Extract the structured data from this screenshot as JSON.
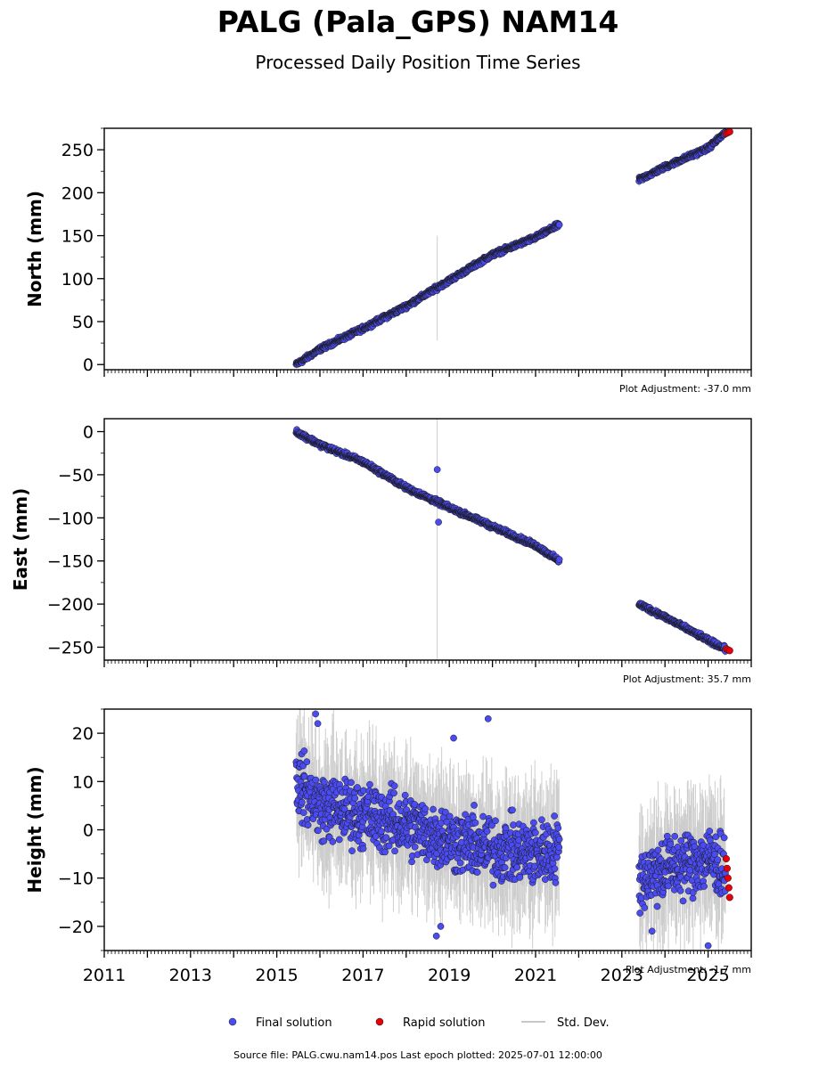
{
  "figure": {
    "title": "PALG (Pala_GPS) NAM14",
    "subtitle": "Processed Daily Position Time Series",
    "source_note": "Source file: PALG.cwu.nam14.pos  Last epoch plotted: 2025-07-01 12:00:00"
  },
  "legend": {
    "final": "Final solution",
    "rapid": "Rapid solution",
    "stddev": "Std. Dev."
  },
  "colors": {
    "final": "#4b4bf2",
    "rapid": "#e8000b",
    "stddev": "#b8b8b8",
    "edge": "#1a1a1a"
  },
  "chart_data": [
    {
      "type": "scatter",
      "ylabel": "North (mm)",
      "adjustment": "Plot Adjustment: -37.0 mm",
      "xlim": [
        2011.0,
        2026.0
      ],
      "ylim": [
        -6,
        275
      ],
      "yticks": [
        0,
        50,
        100,
        150,
        200,
        250
      ],
      "ytick_labels": [
        "0",
        "50",
        "100",
        "150",
        "200",
        "250"
      ],
      "series": [
        {
          "name": "Final solution",
          "segments": [
            {
              "x": [
                2015.45,
                2016.0,
                2017.0,
                2018.0,
                2019.0,
                2020.0,
                2021.0,
                2021.55
              ],
              "y": [
                0,
                18,
                42,
                68,
                98,
                128,
                148,
                163
              ]
            },
            {
              "x": [
                2023.4,
                2024.0,
                2025.0,
                2025.4
              ],
              "y": [
                215,
                230,
                252,
                270
              ]
            }
          ],
          "noise": 2
        },
        {
          "name": "Rapid solution",
          "x": [
            2025.42,
            2025.46,
            2025.5
          ],
          "y": [
            269,
            270,
            271
          ]
        }
      ],
      "outliers": [],
      "stddev_spikes": [
        {
          "x": 2018.72,
          "y_low": 28,
          "y_high": 150
        }
      ]
    },
    {
      "type": "scatter",
      "ylabel": "East (mm)",
      "adjustment": "Plot Adjustment: 35.7 mm",
      "xlim": [
        2011.0,
        2026.0
      ],
      "ylim": [
        -265,
        15
      ],
      "yticks": [
        0,
        -50,
        -100,
        -150,
        -200,
        -250
      ],
      "ytick_labels": [
        "0",
        "−50",
        "−100",
        "−150",
        "−200",
        "−250"
      ],
      "series": [
        {
          "name": "Final solution",
          "segments": [
            {
              "x": [
                2015.45,
                2016.0,
                2017.0,
                2018.0,
                2019.0,
                2020.0,
                2021.0,
                2021.55
              ],
              "y": [
                0,
                -15,
                -35,
                -65,
                -88,
                -110,
                -132,
                -150
              ]
            },
            {
              "x": [
                2023.4,
                2024.0,
                2025.0,
                2025.4
              ],
              "y": [
                -200,
                -215,
                -242,
                -252
              ]
            }
          ],
          "noise": 2
        },
        {
          "name": "Rapid solution",
          "x": [
            2025.42,
            2025.46,
            2025.5
          ],
          "y": [
            -252,
            -253,
            -254
          ]
        }
      ],
      "outliers": [
        {
          "x": 2018.72,
          "y": -44
        },
        {
          "x": 2018.75,
          "y": -105
        }
      ],
      "stddev_spikes": [
        {
          "x": 2018.72,
          "y_low": -265,
          "y_high": 15
        }
      ]
    },
    {
      "type": "scatter",
      "ylabel": "Height (mm)",
      "adjustment": "Plot Adjustment: -1.7 mm",
      "xlim": [
        2011.0,
        2026.0
      ],
      "ylim": [
        -25,
        25
      ],
      "yticks": [
        20,
        10,
        0,
        -10,
        -20
      ],
      "ytick_labels": [
        "20",
        "10",
        "0",
        "−10",
        "−20"
      ],
      "xticks": [
        2011,
        2013,
        2015,
        2017,
        2019,
        2021,
        2023,
        2025
      ],
      "xtick_labels": [
        "2011",
        "2013",
        "2015",
        "2017",
        "2019",
        "2021",
        "2023",
        "2025"
      ],
      "series": [
        {
          "name": "Final solution",
          "segments": [
            {
              "x": [
                2015.45,
                2016.0,
                2017.0,
                2018.0,
                2019.0,
                2020.0,
                2021.0,
                2021.55
              ],
              "y": [
                10,
                5,
                3,
                1,
                -2,
                -4,
                -5,
                -4
              ]
            },
            {
              "x": [
                2023.4,
                2024.0,
                2025.0,
                2025.4
              ],
              "y": [
                -10,
                -8,
                -6,
                -8
              ]
            }
          ],
          "noise": 5
        },
        {
          "name": "Rapid solution",
          "x": [
            2025.42,
            2025.44,
            2025.46,
            2025.48,
            2025.5
          ],
          "y": [
            -6,
            -8,
            -10,
            -12,
            -14
          ]
        }
      ],
      "outliers": [
        {
          "x": 2015.9,
          "y": 24
        },
        {
          "x": 2015.95,
          "y": 22
        },
        {
          "x": 2019.9,
          "y": 23
        },
        {
          "x": 2019.1,
          "y": 19
        },
        {
          "x": 2018.7,
          "y": -22
        },
        {
          "x": 2018.8,
          "y": -20
        },
        {
          "x": 2025.0,
          "y": -24
        },
        {
          "x": 2023.7,
          "y": -21
        }
      ],
      "stddev_spikes": []
    }
  ]
}
